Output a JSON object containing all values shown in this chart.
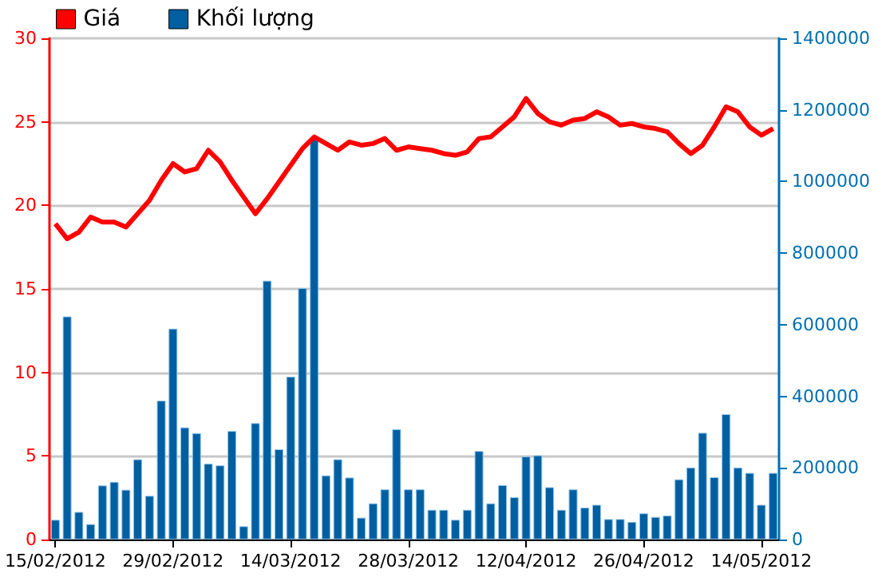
{
  "chart_data": {
    "type": "line",
    "categories": [
      "15/02/2012",
      null,
      null,
      null,
      null,
      null,
      null,
      null,
      null,
      null,
      "29/02/2012",
      null,
      null,
      null,
      null,
      null,
      null,
      null,
      null,
      null,
      "14/03/2012",
      null,
      null,
      null,
      null,
      null,
      null,
      null,
      null,
      null,
      "28/03/2012",
      null,
      null,
      null,
      null,
      null,
      null,
      null,
      null,
      null,
      "12/04/2012",
      null,
      null,
      null,
      null,
      null,
      null,
      null,
      null,
      null,
      "26/04/2012",
      null,
      null,
      null,
      null,
      null,
      null,
      null,
      null,
      null,
      "14/05/2012",
      null
    ],
    "series": [
      {
        "name": "Giá",
        "color": "#ff0000",
        "values": [
          18.9,
          18.0,
          18.4,
          19.3,
          19.0,
          19.0,
          18.7,
          19.5,
          20.3,
          21.5,
          22.5,
          22.0,
          22.2,
          23.3,
          22.6,
          21.5,
          20.5,
          19.5,
          20.4,
          21.4,
          22.4,
          23.4,
          24.1,
          23.7,
          23.3,
          23.8,
          23.6,
          23.7,
          24.0,
          23.3,
          23.5,
          23.4,
          23.3,
          23.1,
          23.0,
          23.2,
          24.0,
          24.1,
          24.7,
          25.3,
          26.4,
          25.5,
          25.0,
          24.8,
          25.1,
          25.2,
          25.6,
          25.3,
          24.8,
          24.9,
          24.7,
          24.6,
          24.4,
          23.7,
          23.1,
          23.6,
          24.7,
          25.9,
          25.6,
          24.7,
          24.2,
          24.6
        ]
      },
      {
        "name": "Khối lượng",
        "type": "bar",
        "axis": "y2",
        "color": "#005fa0",
        "values": [
          55000,
          623000,
          77000,
          43000,
          151000,
          161000,
          139000,
          224000,
          122000,
          388000,
          589000,
          313000,
          297000,
          212000,
          207000,
          303000,
          37000,
          325000,
          723000,
          252000,
          455000,
          702000,
          1120000,
          179000,
          224000,
          173000,
          61000,
          101000,
          140000,
          308000,
          140000,
          140000,
          83000,
          83000,
          55000,
          83000,
          247000,
          101000,
          152000,
          118000,
          232000,
          235000,
          146000,
          83000,
          140000,
          89000,
          97000,
          57000,
          57000,
          49000,
          73000,
          63000,
          67000,
          168000,
          201000,
          298000,
          174000,
          350000,
          201000,
          186000,
          97000,
          186000
        ]
      }
    ],
    "ylim": [
      0,
      30
    ],
    "yticks": [
      0,
      5,
      10,
      15,
      20,
      25,
      30
    ],
    "y2lim": [
      0,
      1400000
    ],
    "y2ticks": [
      0,
      200000,
      400000,
      600000,
      800000,
      1000000,
      1200000,
      1400000
    ],
    "grid": "y",
    "legend": "top left"
  }
}
